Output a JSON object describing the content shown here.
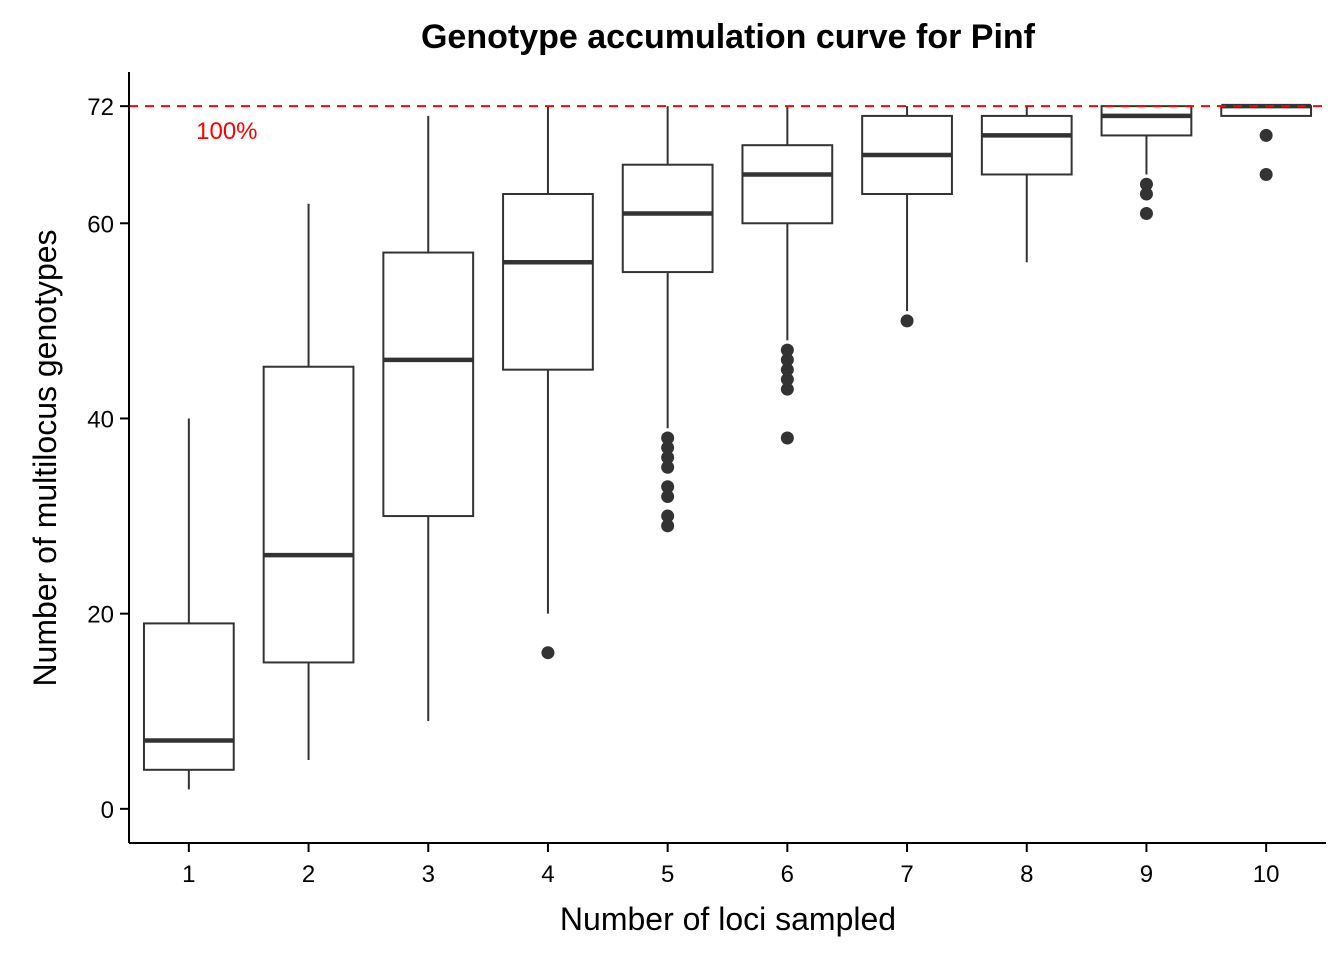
{
  "chart_data": {
    "type": "boxplot",
    "title": "Genotype accumulation curve for Pinf",
    "xlabel": "Number of loci sampled",
    "ylabel": "Number of multilocus genotypes",
    "categories": [
      "1",
      "2",
      "3",
      "4",
      "5",
      "6",
      "7",
      "8",
      "9",
      "10"
    ],
    "ylim": [
      -3.5,
      75.5
    ],
    "yticks": [
      0,
      20,
      40,
      60,
      72
    ],
    "grid": false,
    "boxes": [
      {
        "x": "1",
        "whisker_low": 2,
        "q1": 4,
        "median": 7,
        "q3": 19,
        "whisker_high": 40,
        "outliers": []
      },
      {
        "x": "2",
        "whisker_low": 5,
        "q1": 15,
        "median": 26,
        "q3": 45.3,
        "whisker_high": 62,
        "outliers": []
      },
      {
        "x": "3",
        "whisker_low": 9,
        "q1": 30,
        "median": 46,
        "q3": 57,
        "whisker_high": 71,
        "outliers": []
      },
      {
        "x": "4",
        "whisker_low": 20,
        "q1": 45,
        "median": 56,
        "q3": 63,
        "whisker_high": 72,
        "outliers": [
          16
        ]
      },
      {
        "x": "5",
        "whisker_low": 39,
        "q1": 55,
        "median": 61,
        "q3": 66,
        "whisker_high": 72,
        "outliers": [
          29,
          30,
          32,
          33,
          35,
          36,
          37,
          38
        ]
      },
      {
        "x": "6",
        "whisker_low": 48,
        "q1": 60,
        "median": 65,
        "q3": 68,
        "whisker_high": 72,
        "outliers": [
          38,
          43,
          44,
          45,
          46,
          47
        ]
      },
      {
        "x": "7",
        "whisker_low": 51,
        "q1": 63,
        "median": 67,
        "q3": 71,
        "whisker_high": 72,
        "outliers": [
          50
        ]
      },
      {
        "x": "8",
        "whisker_low": 56,
        "q1": 65,
        "median": 69,
        "q3": 71,
        "whisker_high": 72,
        "outliers": []
      },
      {
        "x": "9",
        "whisker_low": 65,
        "q1": 69,
        "median": 71,
        "q3": 72,
        "whisker_high": 72,
        "outliers": [
          61,
          63,
          64
        ]
      },
      {
        "x": "10",
        "whisker_low": 71,
        "q1": 71,
        "median": 72,
        "q3": 72,
        "whisker_high": 72,
        "outliers": [
          65,
          69
        ]
      }
    ],
    "reference_line": {
      "y": 72,
      "label": "100%",
      "color": "#ff0000",
      "style": "dashed"
    },
    "box_color": "#333333",
    "axis_color": "#000000"
  }
}
